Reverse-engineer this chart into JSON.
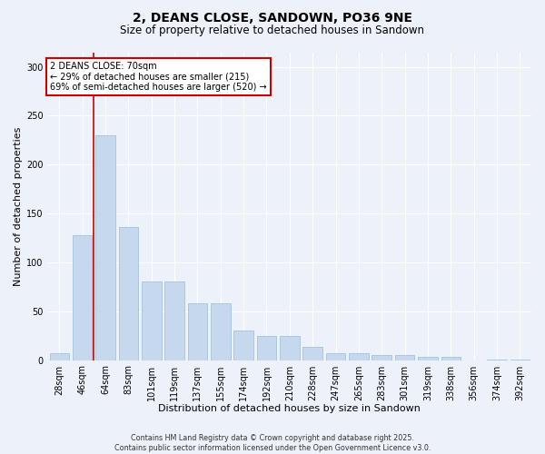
{
  "title1": "2, DEANS CLOSE, SANDOWN, PO36 9NE",
  "title2": "Size of property relative to detached houses in Sandown",
  "xlabel": "Distribution of detached houses by size in Sandown",
  "ylabel": "Number of detached properties",
  "categories": [
    "28sqm",
    "46sqm",
    "64sqm",
    "83sqm",
    "101sqm",
    "119sqm",
    "137sqm",
    "155sqm",
    "174sqm",
    "192sqm",
    "210sqm",
    "228sqm",
    "247sqm",
    "265sqm",
    "283sqm",
    "301sqm",
    "319sqm",
    "338sqm",
    "356sqm",
    "374sqm",
    "392sqm"
  ],
  "values": [
    7,
    128,
    230,
    136,
    80,
    80,
    58,
    58,
    30,
    25,
    25,
    14,
    7,
    7,
    5,
    5,
    3,
    3,
    0,
    1,
    1
  ],
  "bar_color": "#c5d8ed",
  "bar_edge_color": "#9abcd8",
  "vline_x": 1.5,
  "vline_color": "#cc0000",
  "annotation_text": "2 DEANS CLOSE: 70sqm\n← 29% of detached houses are smaller (215)\n69% of semi-detached houses are larger (520) →",
  "annotation_box_color": "#ffffff",
  "annotation_box_edge": "#cc0000",
  "ylim": [
    0,
    315
  ],
  "yticks": [
    0,
    50,
    100,
    150,
    200,
    250,
    300
  ],
  "bg_color": "#edf1f9",
  "footer": "Contains HM Land Registry data © Crown copyright and database right 2025.\nContains public sector information licensed under the Open Government Licence v3.0.",
  "title1_fontsize": 10,
  "title2_fontsize": 8.5,
  "xlabel_fontsize": 8,
  "ylabel_fontsize": 8,
  "tick_fontsize": 7,
  "footer_fontsize": 5.8,
  "annotation_fontsize": 7
}
